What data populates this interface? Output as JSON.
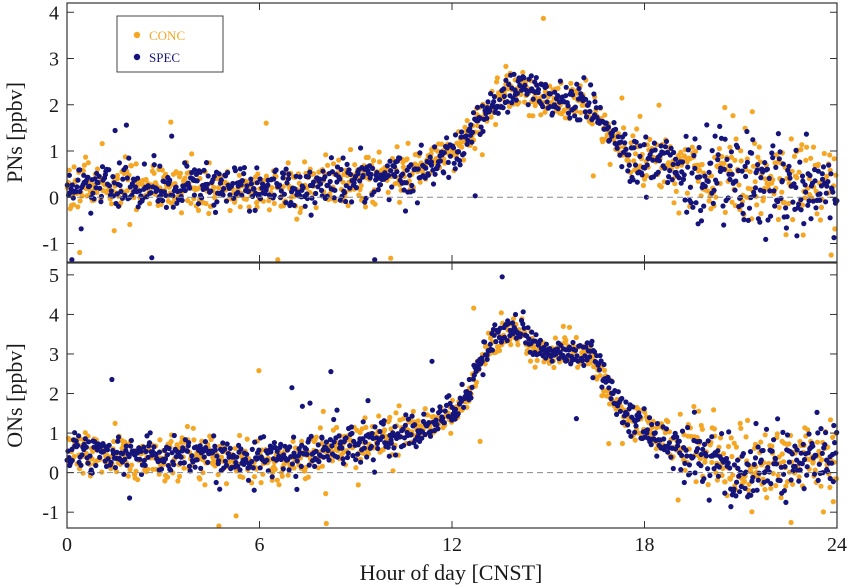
{
  "chart_data": {
    "type": "scatter",
    "xlabel": "Hour of day [CNST]",
    "xlim": [
      0,
      24
    ],
    "xticks": [
      0,
      6,
      12,
      18,
      24
    ],
    "grid": false,
    "series_colors": {
      "CONC": "#F5A623",
      "SPEC": "#14147A"
    },
    "panels": [
      {
        "ylabel": "PNs [ppbv]",
        "ylim": [
          -1.4,
          4.2
        ],
        "yticks": [
          -1,
          0,
          1,
          2,
          3,
          4
        ],
        "zero_line": "dashed",
        "legend": {
          "placement": "top-left",
          "entries": [
            "CONC",
            "SPEC"
          ]
        },
        "series": [
          {
            "name": "CONC",
            "x": [
              0,
              1,
              2,
              3,
              4,
              5,
              6,
              7,
              8,
              9,
              10,
              11,
              12,
              12.5,
              13,
              13.5,
              14,
              14.5,
              15,
              15.5,
              16,
              16.5,
              17,
              17.5,
              18,
              19,
              20,
              21,
              22,
              23,
              24
            ],
            "y": [
              0.3,
              0.2,
              0.2,
              0.15,
              0.2,
              0.15,
              0.15,
              0.2,
              0.3,
              0.4,
              0.45,
              0.6,
              0.9,
              1.3,
              1.8,
              2.2,
              2.4,
              2.2,
              2.1,
              2.0,
              2.1,
              1.8,
              1.2,
              0.9,
              0.8,
              0.6,
              0.5,
              0.4,
              0.3,
              0.2,
              0.1
            ]
          },
          {
            "name": "SPEC",
            "x": [
              0,
              1,
              2,
              3,
              4,
              5,
              6,
              7,
              8,
              9,
              10,
              11,
              12,
              12.5,
              13,
              13.5,
              14,
              14.5,
              15,
              15.5,
              16,
              16.5,
              17,
              17.5,
              18,
              19,
              20,
              21,
              22,
              23,
              24
            ],
            "y": [
              0.3,
              0.25,
              0.2,
              0.2,
              0.25,
              0.2,
              0.2,
              0.25,
              0.3,
              0.35,
              0.45,
              0.6,
              0.9,
              1.3,
              1.8,
              2.1,
              2.4,
              2.3,
              2.1,
              2.0,
              2.1,
              1.8,
              1.3,
              0.9,
              0.8,
              0.6,
              0.45,
              0.35,
              0.3,
              0.2,
              0.15
            ]
          }
        ]
      },
      {
        "ylabel": "ONs [ppbv]",
        "ylim": [
          -1.4,
          5.3
        ],
        "yticks": [
          -1,
          0,
          1,
          2,
          3,
          4,
          5
        ],
        "zero_line": "dashed",
        "legend": null,
        "series": [
          {
            "name": "CONC",
            "x": [
              0,
              1,
              2,
              3,
              4,
              5,
              6,
              7,
              8,
              9,
              10,
              11,
              12,
              12.5,
              13,
              13.5,
              14,
              14.5,
              15,
              15.5,
              16,
              16.5,
              17,
              17.5,
              18,
              19,
              20,
              21,
              22,
              23,
              24
            ],
            "y": [
              0.6,
              0.5,
              0.45,
              0.4,
              0.45,
              0.35,
              0.3,
              0.35,
              0.6,
              0.7,
              0.9,
              1.1,
              1.5,
              2.0,
              3.0,
              3.4,
              3.6,
              3.2,
              3.0,
              3.1,
              3.0,
              2.8,
              1.9,
              1.4,
              1.1,
              0.7,
              0.35,
              0.2,
              0.25,
              0.3,
              0.3
            ]
          },
          {
            "name": "SPEC",
            "x": [
              0,
              1,
              2,
              3,
              4,
              5,
              6,
              7,
              8,
              9,
              10,
              11,
              12,
              12.5,
              13,
              13.5,
              14,
              14.5,
              15,
              15.5,
              16,
              16.5,
              17,
              17.5,
              18,
              19,
              20,
              21,
              22,
              23,
              24
            ],
            "y": [
              0.6,
              0.5,
              0.5,
              0.45,
              0.45,
              0.4,
              0.35,
              0.4,
              0.6,
              0.75,
              0.9,
              1.1,
              1.5,
              2.0,
              3.1,
              3.5,
              3.7,
              3.3,
              3.0,
              3.1,
              3.1,
              2.9,
              2.0,
              1.4,
              1.1,
              0.6,
              0.2,
              0.0,
              0.2,
              0.3,
              0.35
            ]
          }
        ]
      }
    ]
  }
}
